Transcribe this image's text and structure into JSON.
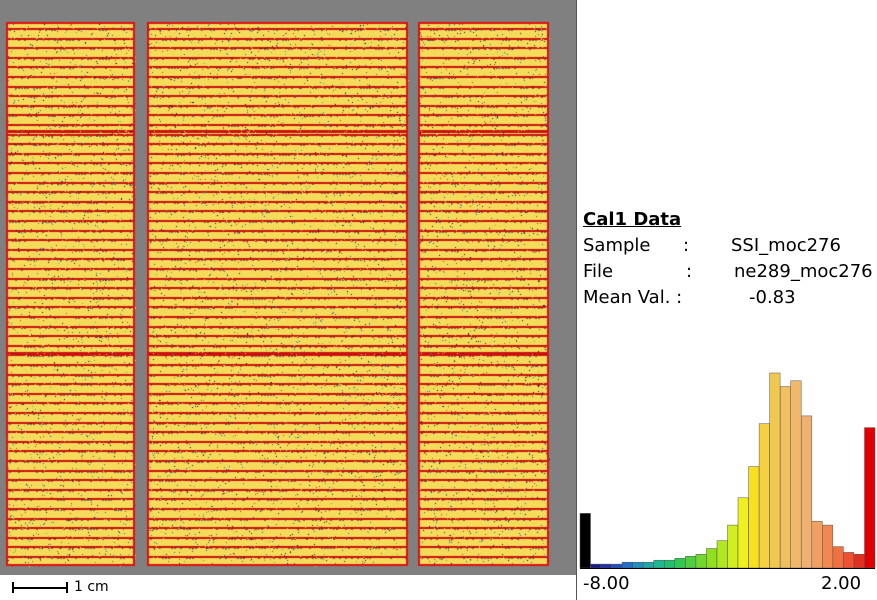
{
  "scalebar": {
    "label": "1 cm"
  },
  "info": {
    "title": "Cal1 Data",
    "rows": [
      {
        "key": "Sample",
        "sep": ":",
        "value": "SSI_moc276"
      },
      {
        "key": "File",
        "sep": ":",
        "value": "ne289_moc276"
      },
      {
        "key": "Mean Val. :",
        "sep": "",
        "value": "-0.83"
      }
    ]
  },
  "histogram": {
    "min_label": "-8.00",
    "max_label": "2.00",
    "bins": [
      {
        "value": 0.28,
        "color": "#000000"
      },
      {
        "value": 0.02,
        "color": "#1a1a8c"
      },
      {
        "value": 0.02,
        "color": "#2030a8"
      },
      {
        "value": 0.02,
        "color": "#2050c0"
      },
      {
        "value": 0.03,
        "color": "#2070c8"
      },
      {
        "value": 0.03,
        "color": "#2090c0"
      },
      {
        "value": 0.03,
        "color": "#20a8a8"
      },
      {
        "value": 0.04,
        "color": "#20b890"
      },
      {
        "value": 0.04,
        "color": "#20c070"
      },
      {
        "value": 0.05,
        "color": "#30c850"
      },
      {
        "value": 0.06,
        "color": "#50d040"
      },
      {
        "value": 0.07,
        "color": "#70d830"
      },
      {
        "value": 0.1,
        "color": "#90e020"
      },
      {
        "value": 0.14,
        "color": "#b0e820"
      },
      {
        "value": 0.22,
        "color": "#d0ee20"
      },
      {
        "value": 0.36,
        "color": "#eef020"
      },
      {
        "value": 0.52,
        "color": "#f8e020"
      },
      {
        "value": 0.74,
        "color": "#f5d040"
      },
      {
        "value": 1.0,
        "color": "#f0c850"
      },
      {
        "value": 0.93,
        "color": "#f0c060"
      },
      {
        "value": 0.96,
        "color": "#f0b868"
      },
      {
        "value": 0.78,
        "color": "#f0b070"
      },
      {
        "value": 0.24,
        "color": "#f0a060"
      },
      {
        "value": 0.22,
        "color": "#f08850"
      },
      {
        "value": 0.11,
        "color": "#f07040"
      },
      {
        "value": 0.08,
        "color": "#f05030"
      },
      {
        "value": 0.07,
        "color": "#e03020"
      },
      {
        "value": 0.72,
        "color": "#e00000"
      }
    ]
  },
  "colors": {
    "background": "#808080",
    "cell": "#f4dc5a",
    "finger": "#cc1010",
    "dark": "#101040"
  }
}
